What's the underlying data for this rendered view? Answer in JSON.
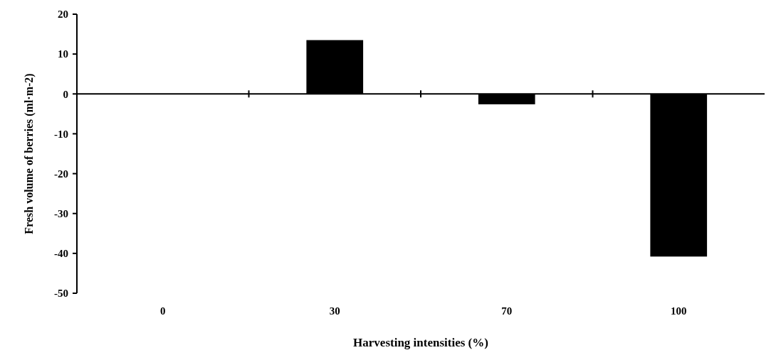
{
  "chart_data": {
    "type": "bar",
    "xlabel": "Harvesting intensities (%)",
    "ylabel": "Fresh volume of berries (ml·m-2)",
    "categories": [
      "0",
      "30",
      "70",
      "100"
    ],
    "values": [
      0,
      13.5,
      -2.6,
      -40.8
    ],
    "color": "#000000",
    "ylim": [
      -50,
      20
    ],
    "yticks": [
      -50,
      -40,
      -30,
      -20,
      -10,
      0,
      10,
      20
    ]
  }
}
